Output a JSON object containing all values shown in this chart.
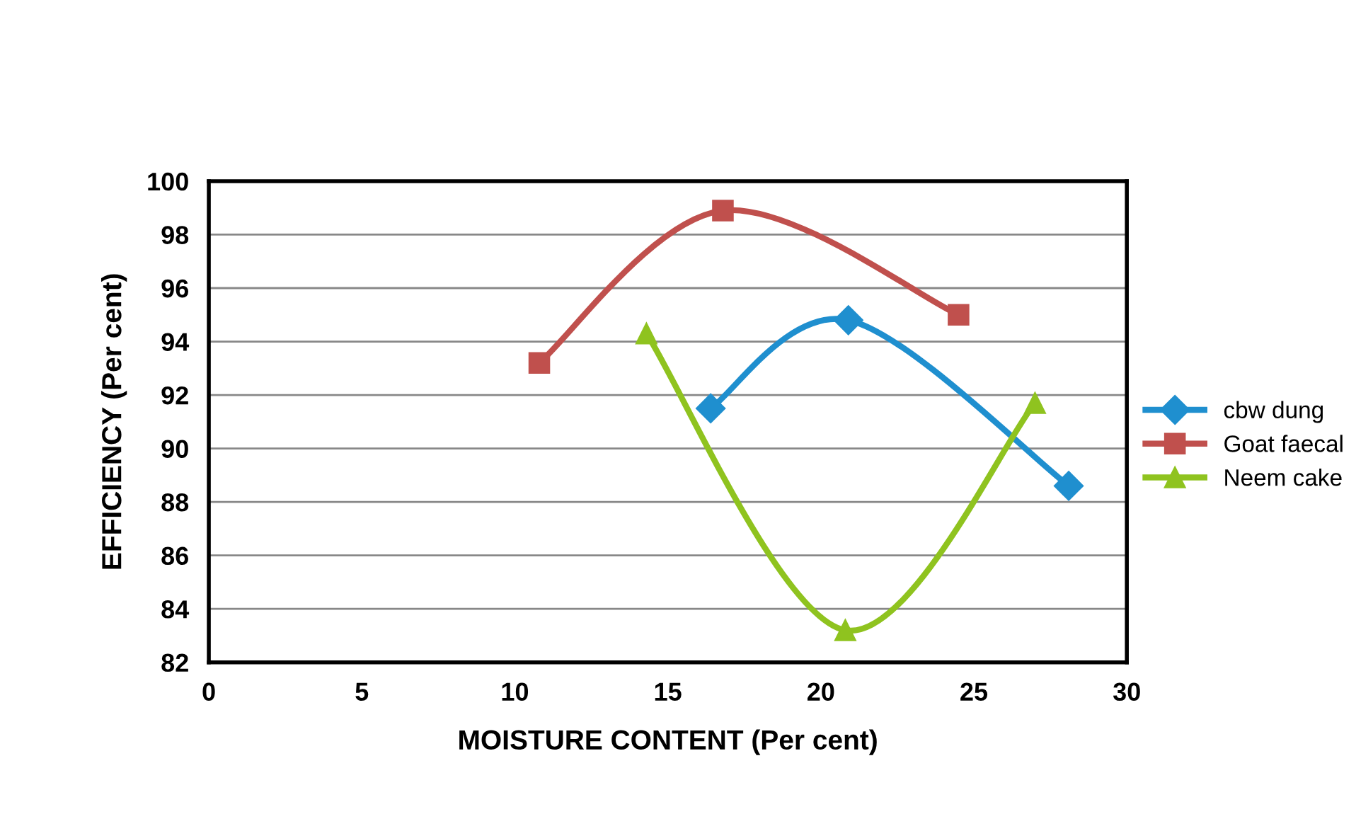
{
  "chart_data": {
    "type": "line",
    "xlabel": "MOISTURE CONTENT (Per cent)",
    "ylabel": "EFFICIENCY (Per cent)",
    "xlim": [
      0,
      30
    ],
    "xticks": [
      0,
      5,
      10,
      15,
      20,
      25,
      30
    ],
    "ylim": [
      82,
      100
    ],
    "yticks": [
      82,
      84,
      86,
      88,
      90,
      92,
      94,
      96,
      98,
      100
    ],
    "grid": "y",
    "legend": "right",
    "series": [
      {
        "name": "cbw dung",
        "color": "#1f8fcf",
        "marker": "diamond",
        "x": [
          16.4,
          20.9,
          28.1
        ],
        "values": [
          91.5,
          94.8,
          88.6
        ]
      },
      {
        "name": "Goat faecal",
        "color": "#c0504d",
        "marker": "square",
        "x": [
          10.8,
          16.8,
          24.5
        ],
        "values": [
          93.2,
          98.9,
          95.0
        ]
      },
      {
        "name": "Neem cake",
        "color": "#8fc31f",
        "marker": "triangle",
        "x": [
          14.3,
          20.8,
          27.0
        ],
        "values": [
          94.3,
          83.2,
          91.7
        ]
      }
    ]
  }
}
